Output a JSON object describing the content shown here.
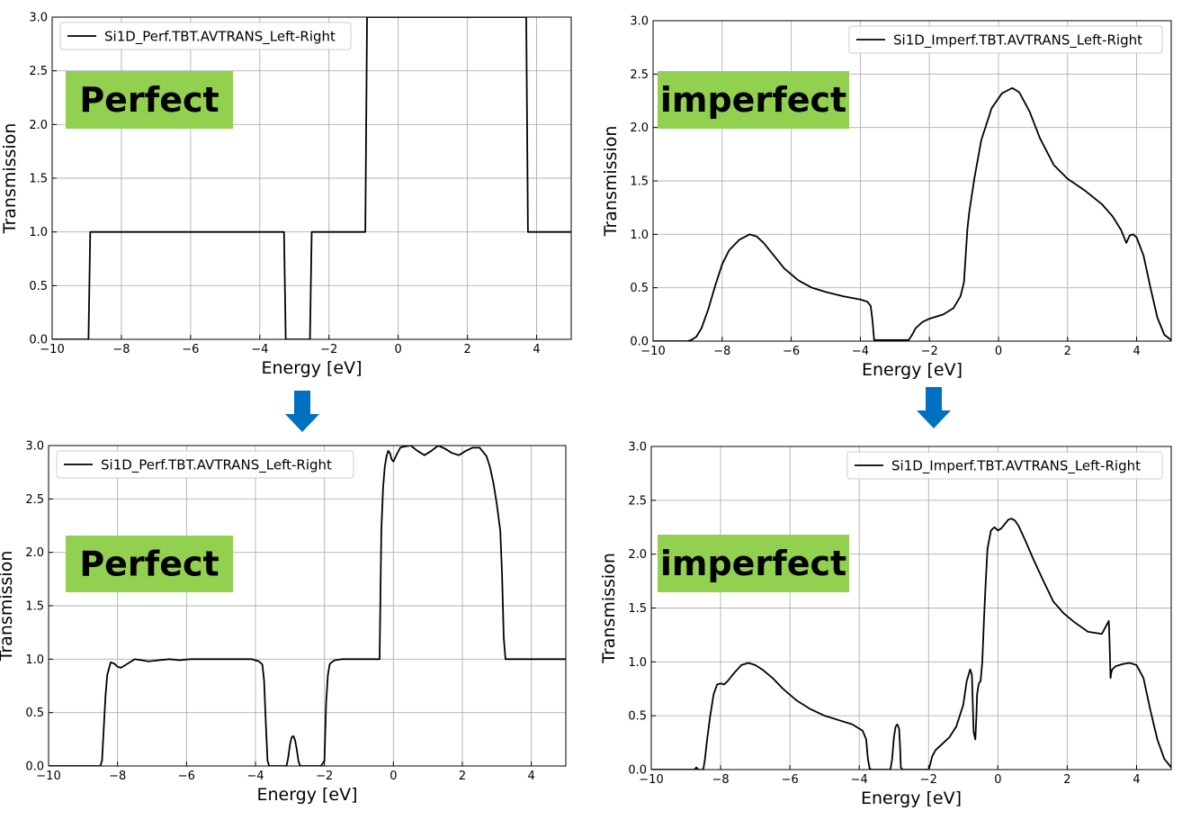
{
  "badge_color": "#92d050",
  "arrow_color": "#0070c0",
  "arrows": [
    {
      "icon": "down-arrow-icon"
    },
    {
      "icon": "down-arrow-icon"
    }
  ],
  "chart_data": [
    {
      "type": "line",
      "xlabel": "Energy [eV]",
      "ylabel": "Transmission",
      "xlim": [
        -10,
        5
      ],
      "ylim": [
        0,
        3
      ],
      "xticks": [
        -10,
        -8,
        -6,
        -4,
        -2,
        0,
        2,
        4
      ],
      "xtick_labels": [
        "−10",
        "−8",
        "−6",
        "−4",
        "−2",
        "0",
        "2",
        "4"
      ],
      "yticks": [
        0,
        0.5,
        1,
        1.5,
        2,
        2.5,
        3
      ],
      "ytick_labels": [
        "0.0",
        "0.5",
        "1.0",
        "1.5",
        "2.0",
        "2.5",
        "3.0"
      ],
      "grid": true,
      "legend_position": "top-left",
      "badge": "Perfect",
      "series": [
        {
          "name": "Si1D_Perf.TBT.AVTRANS_Left-Right",
          "x": [
            -10,
            -8.95,
            -8.9,
            -3.3,
            -3.25,
            -2.55,
            -2.5,
            -0.95,
            -0.9,
            3.7,
            3.75,
            5
          ],
          "y": [
            0,
            0,
            1,
            1,
            0,
            0,
            1,
            1,
            3,
            3,
            1,
            1
          ]
        }
      ]
    },
    {
      "type": "line",
      "xlabel": "Energy [eV]",
      "ylabel": "Transmission",
      "xlim": [
        -10,
        5
      ],
      "ylim": [
        0,
        3
      ],
      "xticks": [
        -10,
        -8,
        -6,
        -4,
        -2,
        0,
        2,
        4
      ],
      "xtick_labels": [
        "−10",
        "−8",
        "−6",
        "−4",
        "−2",
        "0",
        "2",
        "4"
      ],
      "yticks": [
        0,
        0.5,
        1,
        1.5,
        2,
        2.5,
        3
      ],
      "ytick_labels": [
        "0.0",
        "0.5",
        "1.0",
        "1.5",
        "2.0",
        "2.5",
        "3.0"
      ],
      "grid": true,
      "legend_position": "top-right",
      "badge": "imperfect",
      "series": [
        {
          "name": "Si1D_Imperf.TBT.AVTRANS_Left-Right",
          "x": [
            -10,
            -9,
            -8.9,
            -8.75,
            -8.6,
            -8.4,
            -8.2,
            -8.0,
            -7.8,
            -7.5,
            -7.2,
            -7.0,
            -6.8,
            -6.5,
            -6.2,
            -5.8,
            -5.4,
            -5.0,
            -4.5,
            -4.0,
            -3.8,
            -3.7,
            -3.65,
            -3.6,
            -3.2,
            -2.6,
            -2.5,
            -2.4,
            -2.2,
            -2.0,
            -1.6,
            -1.3,
            -1.1,
            -1.0,
            -0.95,
            -0.9,
            -0.85,
            -0.7,
            -0.5,
            -0.2,
            0.1,
            0.4,
            0.6,
            0.9,
            1.2,
            1.6,
            2.0,
            2.5,
            3.0,
            3.3,
            3.55,
            3.7,
            3.8,
            3.9,
            4.0,
            4.2,
            4.4,
            4.6,
            4.8,
            5.0
          ],
          "y": [
            0,
            0,
            0.01,
            0.04,
            0.12,
            0.3,
            0.52,
            0.72,
            0.85,
            0.95,
            1.0,
            0.98,
            0.92,
            0.8,
            0.68,
            0.57,
            0.5,
            0.46,
            0.42,
            0.39,
            0.37,
            0.33,
            0.2,
            0.01,
            0.01,
            0.01,
            0.06,
            0.12,
            0.18,
            0.21,
            0.25,
            0.31,
            0.42,
            0.55,
            0.8,
            1.05,
            1.2,
            1.52,
            1.88,
            2.18,
            2.32,
            2.37,
            2.33,
            2.15,
            1.9,
            1.65,
            1.52,
            1.41,
            1.28,
            1.17,
            1.04,
            0.92,
            0.99,
            1.0,
            0.97,
            0.8,
            0.5,
            0.22,
            0.06,
            0.01
          ]
        }
      ]
    },
    {
      "type": "line",
      "xlabel": "Energy [eV]",
      "ylabel": "Transmission",
      "xlim": [
        -10,
        5
      ],
      "ylim": [
        0,
        3
      ],
      "xticks": [
        -10,
        -8,
        -6,
        -4,
        -2,
        0,
        2,
        4
      ],
      "xtick_labels": [
        "−10",
        "−8",
        "−6",
        "−4",
        "−2",
        "0",
        "2",
        "4"
      ],
      "yticks": [
        0,
        0.5,
        1,
        1.5,
        2,
        2.5,
        3
      ],
      "ytick_labels": [
        "0.0",
        "0.5",
        "1.0",
        "1.5",
        "2.0",
        "2.5",
        "3.0"
      ],
      "grid": true,
      "legend_position": "top-left",
      "badge": "Perfect",
      "series": [
        {
          "name": "Si1D_Perf.TBT.AVTRANS_Left-Right",
          "x": [
            -10,
            -8.5,
            -8.45,
            -8.4,
            -8.35,
            -8.3,
            -8.2,
            -8.1,
            -8.0,
            -7.9,
            -7.7,
            -7.5,
            -7.3,
            -7.1,
            -6.8,
            -6.5,
            -6.2,
            -5.9,
            -5.5,
            -5.0,
            -4.5,
            -4.1,
            -3.9,
            -3.8,
            -3.75,
            -3.7,
            -3.65,
            -3.6,
            -3.1,
            -3.05,
            -3.0,
            -2.95,
            -2.9,
            -2.85,
            -2.8,
            -2.75,
            -2.7,
            -2.1,
            -2.0,
            -1.95,
            -1.9,
            -1.85,
            -1.8,
            -1.7,
            -1.5,
            -1.0,
            -0.4,
            -0.38,
            -0.35,
            -0.3,
            -0.25,
            -0.2,
            -0.15,
            -0.1,
            -0.05,
            0.0,
            0.1,
            0.2,
            0.3,
            0.5,
            0.7,
            0.9,
            1.1,
            1.3,
            1.5,
            1.7,
            1.9,
            2.1,
            2.3,
            2.5,
            2.7,
            2.8,
            2.9,
            3.0,
            3.1,
            3.15,
            3.2,
            3.25,
            5.0
          ],
          "y": [
            0,
            0,
            0.05,
            0.35,
            0.65,
            0.85,
            0.97,
            0.96,
            0.93,
            0.92,
            0.96,
            1.0,
            0.99,
            0.98,
            0.99,
            1.0,
            0.99,
            1.0,
            1.0,
            1.0,
            1.0,
            1.0,
            0.98,
            0.95,
            0.8,
            0.4,
            0.05,
            0,
            0,
            0.08,
            0.2,
            0.27,
            0.28,
            0.24,
            0.15,
            0.04,
            0,
            0,
            0.05,
            0.6,
            0.85,
            0.95,
            0.97,
            0.99,
            1.0,
            1.0,
            1.0,
            1.5,
            2.2,
            2.6,
            2.8,
            2.9,
            2.95,
            2.93,
            2.87,
            2.85,
            2.92,
            2.98,
            2.99,
            3.0,
            2.95,
            2.91,
            2.95,
            3.0,
            2.97,
            2.93,
            2.91,
            2.95,
            2.98,
            2.98,
            2.9,
            2.8,
            2.65,
            2.45,
            2.2,
            1.8,
            1.2,
            1.0,
            1.0
          ]
        }
      ]
    },
    {
      "type": "line",
      "xlabel": "Energy [eV]",
      "ylabel": "Transmission",
      "xlim": [
        -10,
        5
      ],
      "ylim": [
        0,
        3
      ],
      "xticks": [
        -10,
        -8,
        -6,
        -4,
        -2,
        0,
        2,
        4
      ],
      "xtick_labels": [
        "−10",
        "−8",
        "−6",
        "−4",
        "−2",
        "0",
        "2",
        "4"
      ],
      "yticks": [
        0,
        0.5,
        1,
        1.5,
        2,
        2.5,
        3
      ],
      "ytick_labels": [
        "0.0",
        "0.5",
        "1.0",
        "1.5",
        "2.0",
        "2.5",
        "3.0"
      ],
      "grid": true,
      "legend_position": "top-right",
      "badge": "imperfect",
      "series": [
        {
          "name": "Si1D_Imperf.TBT.AVTRANS_Left-Right",
          "x": [
            -10,
            -8.75,
            -8.7,
            -8.65,
            -8.5,
            -8.45,
            -8.4,
            -8.3,
            -8.2,
            -8.1,
            -8.0,
            -7.9,
            -7.8,
            -7.6,
            -7.4,
            -7.2,
            -7.0,
            -6.8,
            -6.5,
            -6.2,
            -5.8,
            -5.4,
            -5.0,
            -4.6,
            -4.2,
            -3.9,
            -3.8,
            -3.75,
            -3.7,
            -3.65,
            -3.1,
            -3.05,
            -3.0,
            -2.95,
            -2.9,
            -2.85,
            -2.82,
            -2.8,
            -2.75,
            -2.7,
            -2.0,
            -1.95,
            -1.9,
            -1.8,
            -1.6,
            -1.4,
            -1.2,
            -1.0,
            -0.9,
            -0.8,
            -0.75,
            -0.7,
            -0.65,
            -0.62,
            -0.6,
            -0.55,
            -0.5,
            -0.45,
            -0.4,
            -0.35,
            -0.3,
            -0.2,
            -0.1,
            0.0,
            0.1,
            0.2,
            0.3,
            0.4,
            0.5,
            0.6,
            0.8,
            1.0,
            1.3,
            1.6,
            1.9,
            2.2,
            2.6,
            3.0,
            3.2,
            3.22,
            3.25,
            3.27,
            3.3,
            3.4,
            3.6,
            3.8,
            4.0,
            4.2,
            4.4,
            4.6,
            4.8,
            5.0
          ],
          "y": [
            0,
            0,
            0.02,
            0,
            0,
            0.1,
            0.25,
            0.5,
            0.7,
            0.79,
            0.8,
            0.79,
            0.82,
            0.9,
            0.97,
            0.99,
            0.97,
            0.93,
            0.85,
            0.75,
            0.64,
            0.56,
            0.5,
            0.46,
            0.42,
            0.36,
            0.28,
            0.1,
            0.01,
            0,
            0,
            0.1,
            0.3,
            0.4,
            0.42,
            0.38,
            0.2,
            0.02,
            0,
            0,
            0,
            0.05,
            0.12,
            0.18,
            0.24,
            0.3,
            0.4,
            0.6,
            0.82,
            0.93,
            0.88,
            0.35,
            0.28,
            0.5,
            0.7,
            0.8,
            0.82,
            1.0,
            1.4,
            1.75,
            2.05,
            2.22,
            2.25,
            2.22,
            2.24,
            2.28,
            2.32,
            2.33,
            2.31,
            2.26,
            2.12,
            1.97,
            1.76,
            1.56,
            1.45,
            1.37,
            1.28,
            1.26,
            1.38,
            1.2,
            0.85,
            0.9,
            0.93,
            0.96,
            0.98,
            0.99,
            0.97,
            0.85,
            0.55,
            0.28,
            0.1,
            0.02
          ]
        }
      ]
    }
  ]
}
